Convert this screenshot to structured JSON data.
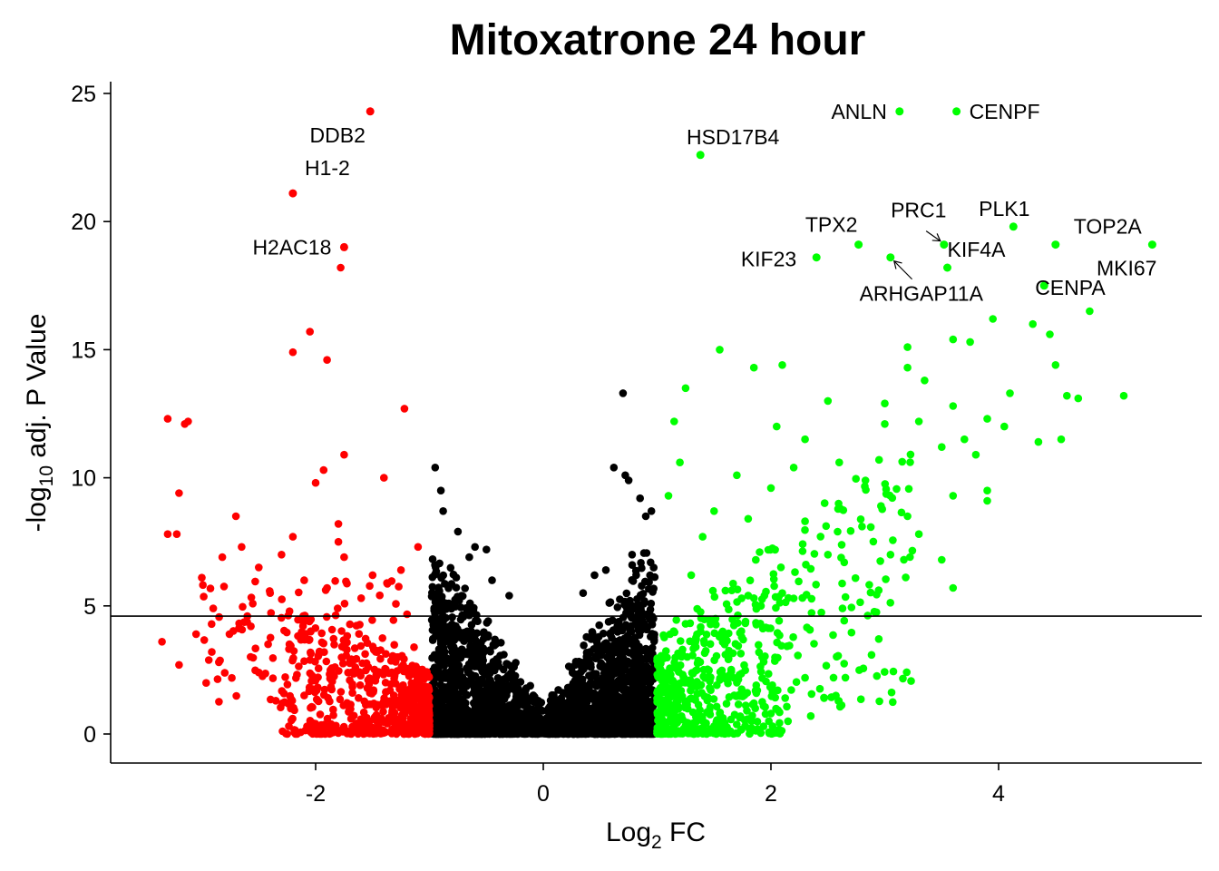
{
  "chart_data": {
    "type": "scatter",
    "title": "Mitoxatrone 24 hour",
    "xlabel": {
      "main": "Log",
      "sub": "2",
      "rest": " FC"
    },
    "ylabel": {
      "main": "-log",
      "sub": "10",
      "rest": " adj. P Value"
    },
    "xlim": [
      -3.8,
      5.8
    ],
    "ylim": [
      -1.2,
      25.5
    ],
    "xticks": [
      -2,
      0,
      2,
      4
    ],
    "yticks": [
      0,
      5,
      10,
      15,
      20,
      25
    ],
    "threshold_y": 4.6,
    "fc_cutoff": 1,
    "grid": false,
    "legend": "none",
    "colors": {
      "down": "#ff0000",
      "ns": "#000000",
      "up": "#00ff00"
    },
    "labeled_points": [
      {
        "gene": "DDB2",
        "x": -1.52,
        "y": 24.3
      },
      {
        "gene": "H1-2",
        "x": -2.2,
        "y": 21.1
      },
      {
        "gene": "H2AC18",
        "x": -1.75,
        "y": 19.0
      },
      {
        "gene": "HSD17B4",
        "x": 1.38,
        "y": 22.6
      },
      {
        "gene": "ANLN",
        "x": 3.13,
        "y": 24.3
      },
      {
        "gene": "CENPF",
        "x": 3.63,
        "y": 24.3
      },
      {
        "gene": "PLK1",
        "x": 4.13,
        "y": 19.8
      },
      {
        "gene": "TOP2A",
        "x": 4.5,
        "y": 19.1
      },
      {
        "gene": "PRC1",
        "x": 3.52,
        "y": 19.1
      },
      {
        "gene": "TPX2",
        "x": 2.77,
        "y": 19.1
      },
      {
        "gene": "KIF4A",
        "x": 3.55,
        "y": 18.2
      },
      {
        "gene": "KIF23",
        "x": 2.4,
        "y": 18.6
      },
      {
        "gene": "ARHGAP11A",
        "x": 3.05,
        "y": 18.6
      },
      {
        "gene": "CENPA",
        "x": 4.4,
        "y": 17.5
      },
      {
        "gene": "MKI67",
        "x": 5.35,
        "y": 19.1
      }
    ],
    "points_down": [
      [
        -1.78,
        18.2
      ],
      [
        -2.05,
        15.7
      ],
      [
        -2.2,
        14.9
      ],
      [
        -1.9,
        14.6
      ],
      [
        -1.22,
        12.7
      ],
      [
        -3.3,
        12.3
      ],
      [
        -3.15,
        12.1
      ],
      [
        -3.12,
        12.2
      ],
      [
        -3.2,
        9.4
      ],
      [
        -1.75,
        10.9
      ],
      [
        -1.93,
        10.3
      ],
      [
        -1.4,
        10.0
      ],
      [
        -2.0,
        9.8
      ],
      [
        -3.3,
        7.8
      ],
      [
        -3.22,
        7.8
      ],
      [
        -2.7,
        8.5
      ],
      [
        -1.8,
        8.2
      ],
      [
        -2.2,
        7.7
      ],
      [
        -1.8,
        7.5
      ],
      [
        -2.65,
        7.3
      ],
      [
        -1.1,
        7.3
      ],
      [
        -2.3,
        7.0
      ],
      [
        -1.75,
        6.9
      ],
      [
        -2.82,
        6.9
      ],
      [
        -1.25,
        6.4
      ],
      [
        -3.0,
        6.1
      ],
      [
        -2.5,
        6.5
      ],
      [
        -1.5,
        6.2
      ],
      [
        -2.1,
        6.0
      ],
      [
        -1.9,
        5.7
      ],
      [
        -2.4,
        5.5
      ],
      [
        -1.6,
        5.3
      ],
      [
        -2.9,
        4.9
      ],
      [
        -2.6,
        4.6
      ],
      [
        -3.35,
        3.6
      ],
      [
        -3.2,
        2.7
      ],
      [
        -3.05,
        3.9
      ],
      [
        -2.85,
        2.8
      ],
      [
        -2.5,
        2.4
      ],
      [
        -2.1,
        1.5
      ],
      [
        -2.35,
        1.3
      ],
      [
        -1.7,
        2.1
      ]
    ],
    "points_up": [
      [
        3.95,
        16.2
      ],
      [
        4.3,
        16.0
      ],
      [
        4.45,
        15.6
      ],
      [
        4.8,
        16.5
      ],
      [
        3.6,
        15.4
      ],
      [
        3.75,
        15.3
      ],
      [
        3.2,
        15.1
      ],
      [
        1.55,
        15.0
      ],
      [
        1.85,
        14.3
      ],
      [
        2.1,
        14.4
      ],
      [
        3.2,
        14.3
      ],
      [
        3.35,
        13.8
      ],
      [
        4.5,
        14.4
      ],
      [
        5.1,
        13.2
      ],
      [
        4.6,
        13.2
      ],
      [
        4.7,
        13.1
      ],
      [
        4.1,
        13.3
      ],
      [
        1.25,
        13.5
      ],
      [
        2.5,
        13.0
      ],
      [
        3.0,
        12.9
      ],
      [
        3.6,
        12.8
      ],
      [
        3.9,
        12.3
      ],
      [
        4.05,
        12.0
      ],
      [
        4.35,
        11.4
      ],
      [
        4.55,
        11.5
      ],
      [
        1.15,
        12.2
      ],
      [
        2.05,
        12.0
      ],
      [
        3.0,
        12.1
      ],
      [
        3.3,
        12.2
      ],
      [
        2.3,
        11.5
      ],
      [
        3.5,
        11.2
      ],
      [
        3.7,
        11.5
      ],
      [
        3.8,
        10.9
      ],
      [
        1.2,
        10.6
      ],
      [
        1.7,
        10.1
      ],
      [
        2.2,
        10.4
      ],
      [
        2.6,
        10.6
      ],
      [
        2.95,
        10.7
      ],
      [
        3.9,
        9.5
      ],
      [
        3.9,
        9.1
      ],
      [
        3.6,
        9.3
      ],
      [
        2.0,
        9.6
      ],
      [
        1.1,
        9.3
      ],
      [
        1.5,
        8.7
      ],
      [
        1.8,
        8.4
      ],
      [
        2.3,
        8.3
      ],
      [
        2.8,
        8.1
      ],
      [
        3.2,
        8.5
      ],
      [
        3.3,
        7.8
      ],
      [
        1.4,
        7.7
      ],
      [
        1.9,
        7.1
      ],
      [
        2.5,
        7.0
      ],
      [
        3.5,
        6.8
      ],
      [
        3.05,
        7.0
      ],
      [
        1.3,
        6.2
      ],
      [
        1.6,
        5.6
      ],
      [
        1.85,
        5.3
      ],
      [
        2.1,
        5.5
      ],
      [
        3.6,
        5.7
      ],
      [
        1.25,
        4.3
      ],
      [
        1.6,
        3.1
      ],
      [
        1.35,
        2.5
      ],
      [
        1.7,
        2.0
      ],
      [
        2.55,
        2.2
      ],
      [
        1.85,
        1.2
      ],
      [
        2.0,
        0.8
      ],
      [
        2.15,
        0.5
      ],
      [
        2.35,
        0.7
      ],
      [
        1.55,
        0.8
      ],
      [
        1.25,
        1.2
      ]
    ]
  }
}
